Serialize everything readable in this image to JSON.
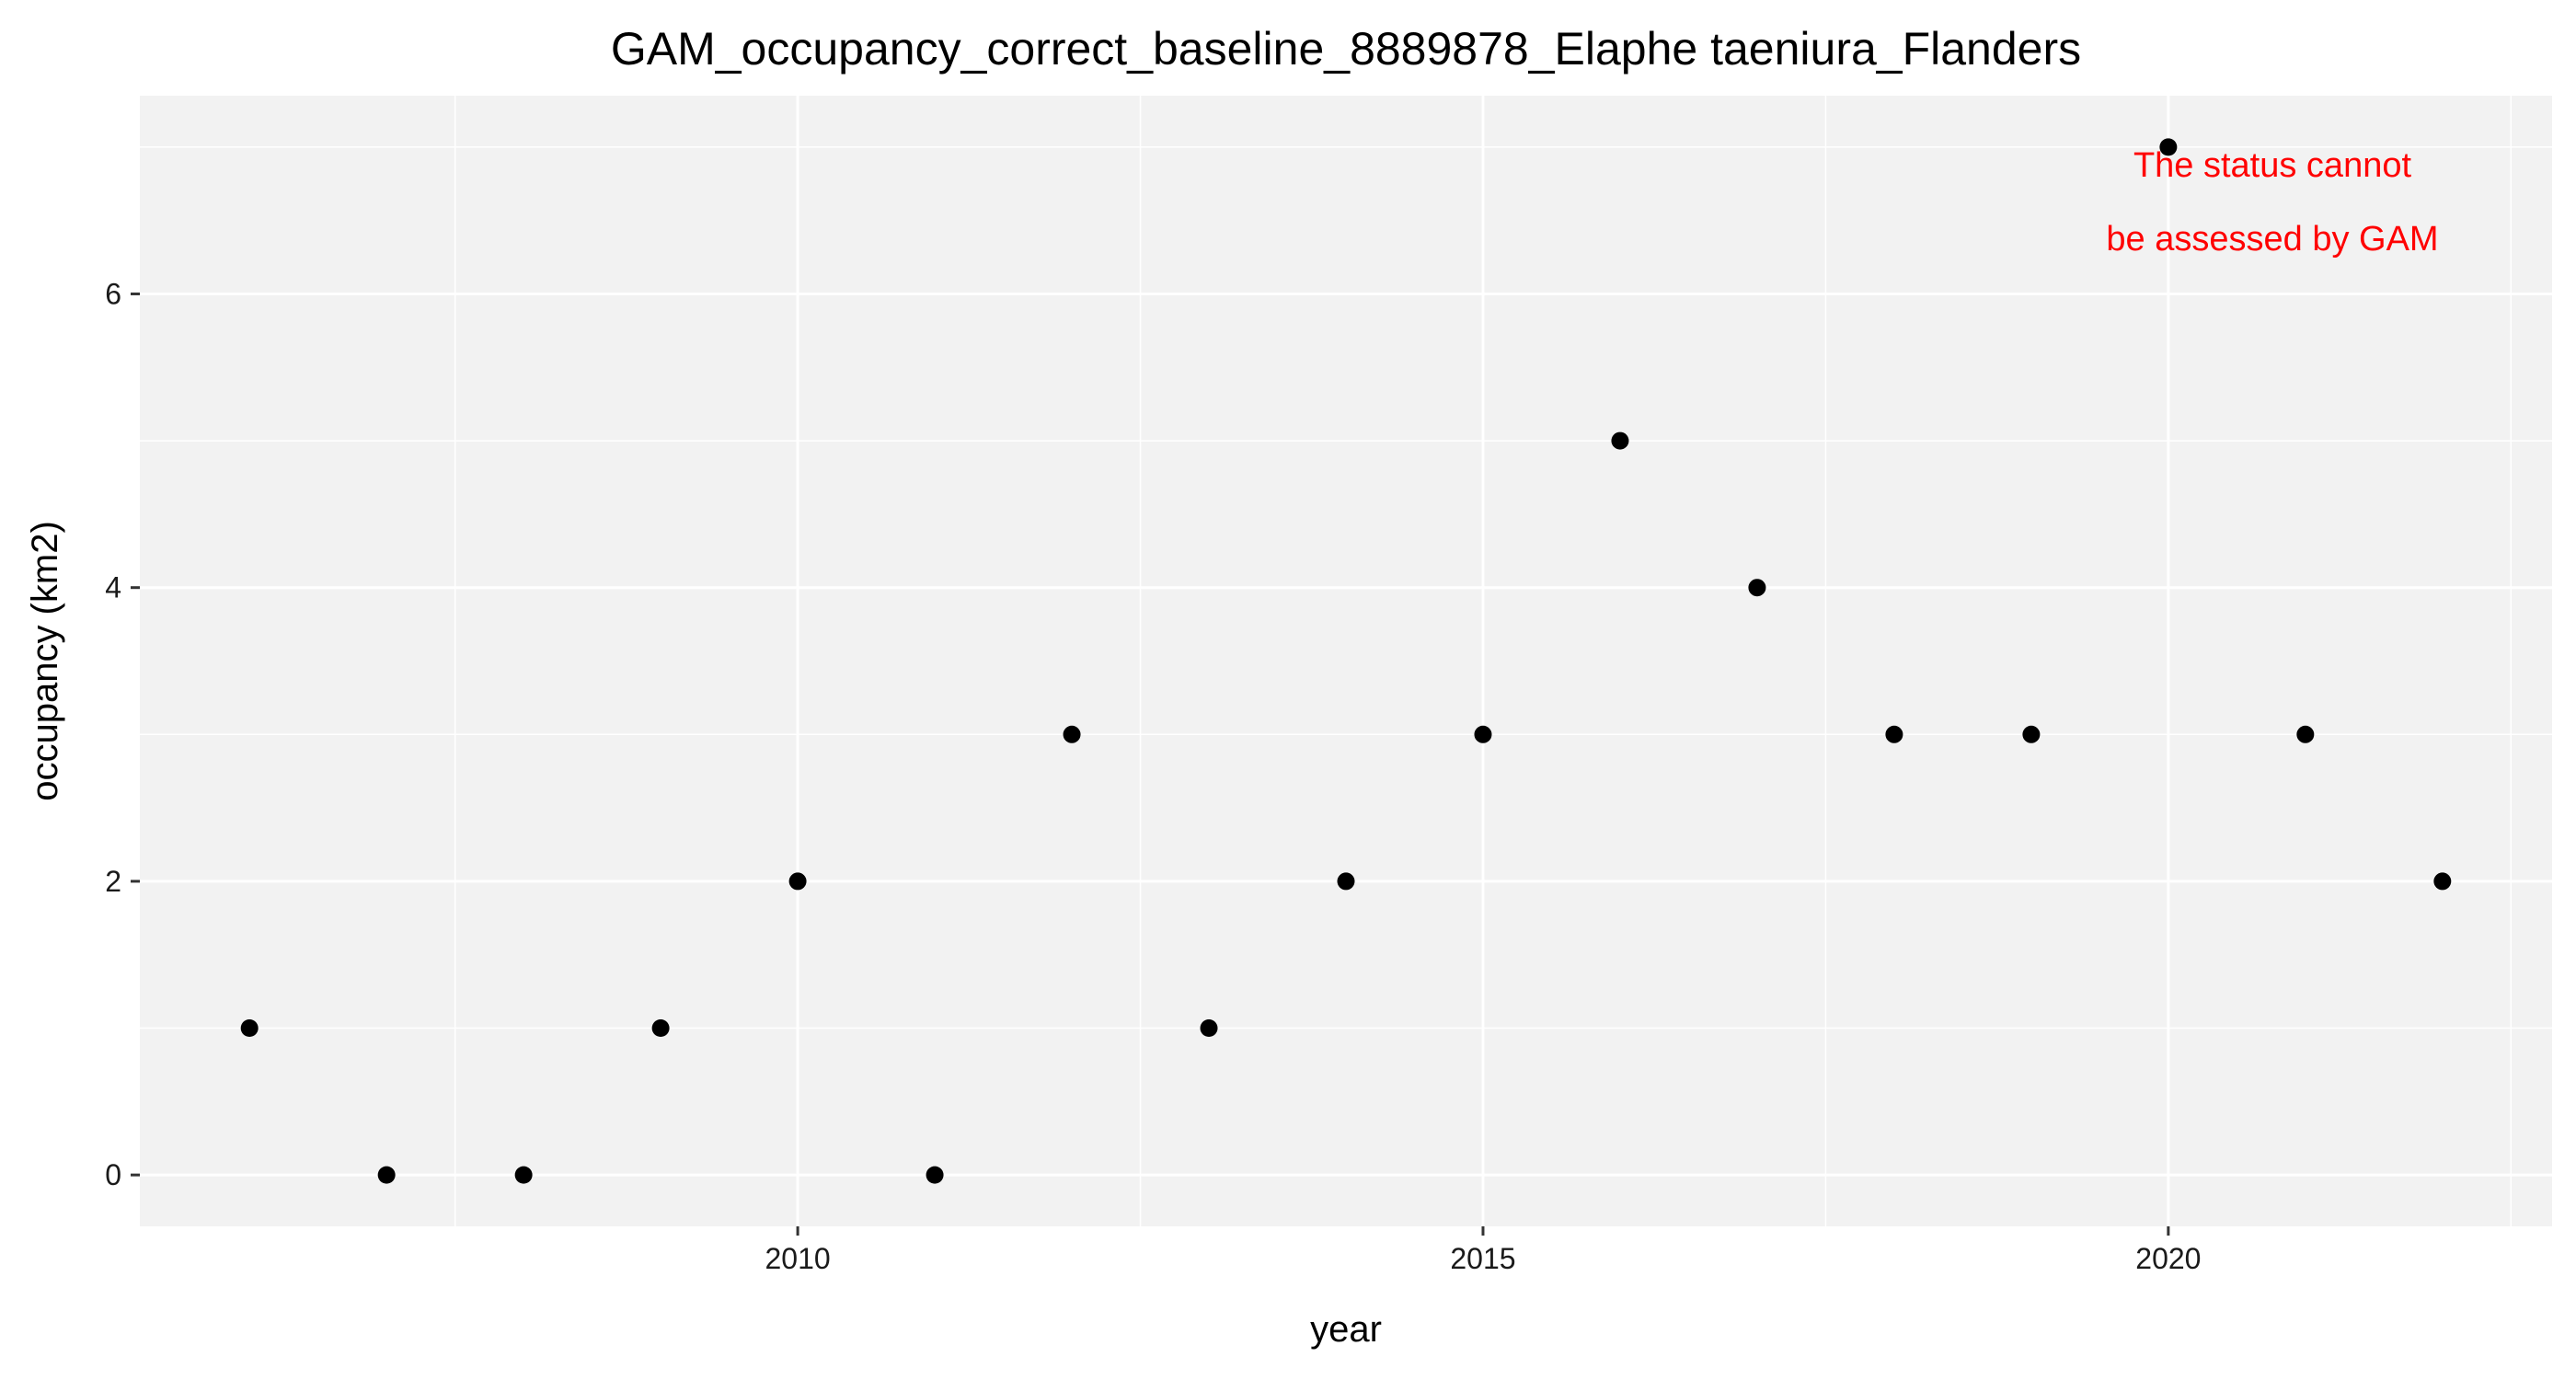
{
  "chart_data": {
    "type": "scatter",
    "title": "GAM_occupancy_correct_baseline_8889878_Elaphe taeniura_Flanders",
    "xlabel": "year",
    "ylabel": "occupancy (km2)",
    "xlim": [
      2005.2,
      2022.8
    ],
    "ylim": [
      -0.35,
      7.35
    ],
    "x_ticks": [
      2010,
      2015,
      2020
    ],
    "x_tick_labels": [
      "2010",
      "2015",
      "2020"
    ],
    "x_minor_breaks": [
      2007.5,
      2012.5,
      2017.5,
      2022.5
    ],
    "y_ticks": [
      0,
      2,
      4,
      6
    ],
    "y_tick_labels": [
      "0",
      "2",
      "4",
      "6"
    ],
    "y_minor_breaks": [
      1,
      3,
      5,
      7
    ],
    "grid": true,
    "legend": "none",
    "points": [
      {
        "x": 2006,
        "y": 1
      },
      {
        "x": 2007,
        "y": 0
      },
      {
        "x": 2008,
        "y": 0
      },
      {
        "x": 2009,
        "y": 1
      },
      {
        "x": 2010,
        "y": 2
      },
      {
        "x": 2011,
        "y": 0
      },
      {
        "x": 2012,
        "y": 3
      },
      {
        "x": 2013,
        "y": 1
      },
      {
        "x": 2014,
        "y": 2
      },
      {
        "x": 2015,
        "y": 3
      },
      {
        "x": 2016,
        "y": 5
      },
      {
        "x": 2017,
        "y": 4
      },
      {
        "x": 2018,
        "y": 3
      },
      {
        "x": 2019,
        "y": 3
      },
      {
        "x": 2020,
        "y": 7
      },
      {
        "x": 2021,
        "y": 3
      },
      {
        "x": 2022,
        "y": 2
      }
    ],
    "annotation": {
      "lines": [
        "The status cannot",
        "be assessed by GAM"
      ],
      "color": "#ff0000"
    },
    "colors": {
      "panel_background": "#f2f2f2",
      "grid": "#ffffff",
      "point": "#000000",
      "tick": "#333333"
    }
  }
}
